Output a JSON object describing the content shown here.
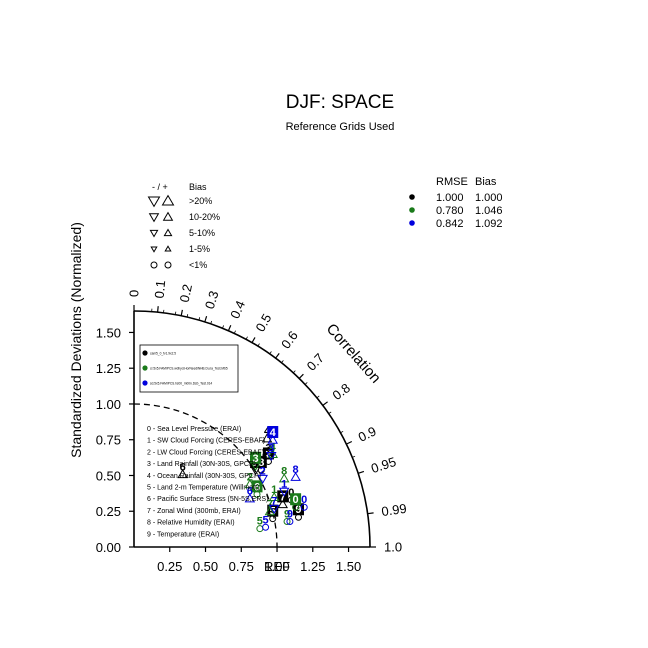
{
  "chart_data": {
    "type": "scatter",
    "title": "DJF: SPACE",
    "subtitle": "Reference Grids Used",
    "ylabel": "Standardized Deviations (Normalized)",
    "angular_label": "Correlation",
    "ref_label": "REF",
    "xlim": [
      0,
      1.65
    ],
    "ylim": [
      0,
      1.65
    ],
    "x_ticks": [
      "0.25",
      "0.50",
      "0.75",
      "1.00",
      "1.25",
      "1.50"
    ],
    "y_ticks": [
      "0.00",
      "0.25",
      "0.50",
      "0.75",
      "1.00",
      "1.25",
      "1.50"
    ],
    "corr_ticks": [
      "0",
      "0.1",
      "0.2",
      "0.3",
      "0.4",
      "0.5",
      "0.6",
      "0.7",
      "0.8",
      "0.9",
      "0.95",
      "0.99",
      "1.0"
    ],
    "ref_circle_radius": 1.0,
    "legend_bias": {
      "header_sign": "- / +",
      "header": "Bias",
      "rows": [
        ">20%",
        "10-20%",
        "5-10%",
        "1-5%",
        "<1%"
      ]
    },
    "legend_stats": {
      "header_rmse": "RMSE",
      "header_bias": "Bias",
      "rows": [
        {
          "color": "#000000",
          "rmse": "1.000",
          "bias": "1.000"
        },
        {
          "color": "#1a7a1a",
          "rmse": "0.780",
          "bias": "1.046"
        },
        {
          "color": "#0000dd",
          "rmse": "0.842",
          "bias": "1.092"
        }
      ]
    },
    "case_labels": [
      "cam5_0_fv1.9x2.5",
      "cr.5x5.FAMIPCS.wdhyd.HorNeediNHB.Du.la_Test.M65",
      "sd.5x5.FAMIPCS.hs00_m00n.Dsb_Test.014"
    ],
    "variables": [
      "0 - Sea Level Pressure (ERAI)",
      "1 - SW Cloud Forcing (CERES-EBAF)",
      "2 - LW Cloud Forcing (CERES-EBAF)",
      "3 - Land Rainfall (30N-30S, GPCP)",
      "4 - Ocean Rainfall (30N-30S, GPCP)",
      "5 - Land 2-m Temperature (Willmott)",
      "6 - Pacific Surface Stress (5N-5S,ERS)",
      "7 - Zonal Wind (300mb, ERAI)",
      "8 - Relative Humidity (ERAI)",
      "9 - Temperature (ERAI)"
    ],
    "series": [
      {
        "color": "#000000",
        "points": [
          {
            "id": "0",
            "x": 1.1,
            "y": 0.37,
            "marker": "circle",
            "boxed": false
          },
          {
            "id": "1",
            "x": 0.85,
            "y": 0.58,
            "marker": "tri-down",
            "boxed": true
          },
          {
            "id": "2",
            "x": 0.94,
            "y": 0.64,
            "marker": "circle",
            "boxed": true
          },
          {
            "id": "3",
            "x": 0.94,
            "y": 0.68,
            "marker": "circle",
            "boxed": false
          },
          {
            "id": "4",
            "x": 0.93,
            "y": 0.8,
            "marker": "tri-up",
            "boxed": false
          },
          {
            "id": "5",
            "x": 0.97,
            "y": 0.24,
            "marker": "circle",
            "boxed": true
          },
          {
            "id": "6",
            "x": 0.34,
            "y": 0.55,
            "marker": "tri-up",
            "boxed": false
          },
          {
            "id": "7",
            "x": 1.04,
            "y": 0.34,
            "marker": "tri-up",
            "boxed": true
          },
          {
            "id": "8",
            "x": 0.89,
            "y": 0.58,
            "marker": "circle",
            "boxed": true
          },
          {
            "id": "9",
            "x": 1.15,
            "y": 0.25,
            "marker": "circle",
            "boxed": true
          }
        ]
      },
      {
        "color": "#1a7a1a",
        "points": [
          {
            "id": "0",
            "x": 1.13,
            "y": 0.32,
            "marker": "circle",
            "boxed": true
          },
          {
            "id": "1",
            "x": 0.98,
            "y": 0.39,
            "marker": "tri-up",
            "boxed": false
          },
          {
            "id": "2",
            "x": 0.81,
            "y": 0.48,
            "marker": "tri-up",
            "boxed": false
          },
          {
            "id": "3",
            "x": 0.85,
            "y": 0.61,
            "marker": "tri-down",
            "boxed": true
          },
          {
            "id": "4",
            "x": 0.97,
            "y": 0.69,
            "marker": "tri-up",
            "boxed": false
          },
          {
            "id": "5",
            "x": 0.88,
            "y": 0.17,
            "marker": "circle",
            "boxed": false
          },
          {
            "id": "6",
            "x": 0.86,
            "y": 0.41,
            "marker": "circle",
            "boxed": true
          },
          {
            "id": "7",
            "x": 0.95,
            "y": 0.29,
            "marker": "tri-up",
            "boxed": false
          },
          {
            "id": "8",
            "x": 1.05,
            "y": 0.52,
            "marker": "tri-up",
            "boxed": false
          },
          {
            "id": "9",
            "x": 1.07,
            "y": 0.22,
            "marker": "circle",
            "boxed": false
          }
        ]
      },
      {
        "color": "#0000dd",
        "points": [
          {
            "id": "0",
            "x": 1.19,
            "y": 0.32,
            "marker": "circle",
            "boxed": false
          },
          {
            "id": "1",
            "x": 1.05,
            "y": 0.43,
            "marker": "tri-down",
            "boxed": false
          },
          {
            "id": "2",
            "x": 0.9,
            "y": 0.52,
            "marker": "tri-down",
            "boxed": false
          },
          {
            "id": "3",
            "x": 0.96,
            "y": 0.68,
            "marker": "tri-down",
            "boxed": false
          },
          {
            "id": "4",
            "x": 0.97,
            "y": 0.79,
            "marker": "tri-up",
            "boxed": true
          },
          {
            "id": "5",
            "x": 0.92,
            "y": 0.18,
            "marker": "circle",
            "boxed": false
          },
          {
            "id": "6",
            "x": 0.81,
            "y": 0.38,
            "marker": "tri-up",
            "boxed": false
          },
          {
            "id": "7",
            "x": 0.98,
            "y": 0.31,
            "marker": "tri-down",
            "boxed": false
          },
          {
            "id": "8",
            "x": 1.13,
            "y": 0.53,
            "marker": "tri-up",
            "boxed": false
          },
          {
            "id": "9",
            "x": 1.09,
            "y": 0.22,
            "marker": "circle",
            "boxed": false
          }
        ]
      }
    ]
  }
}
